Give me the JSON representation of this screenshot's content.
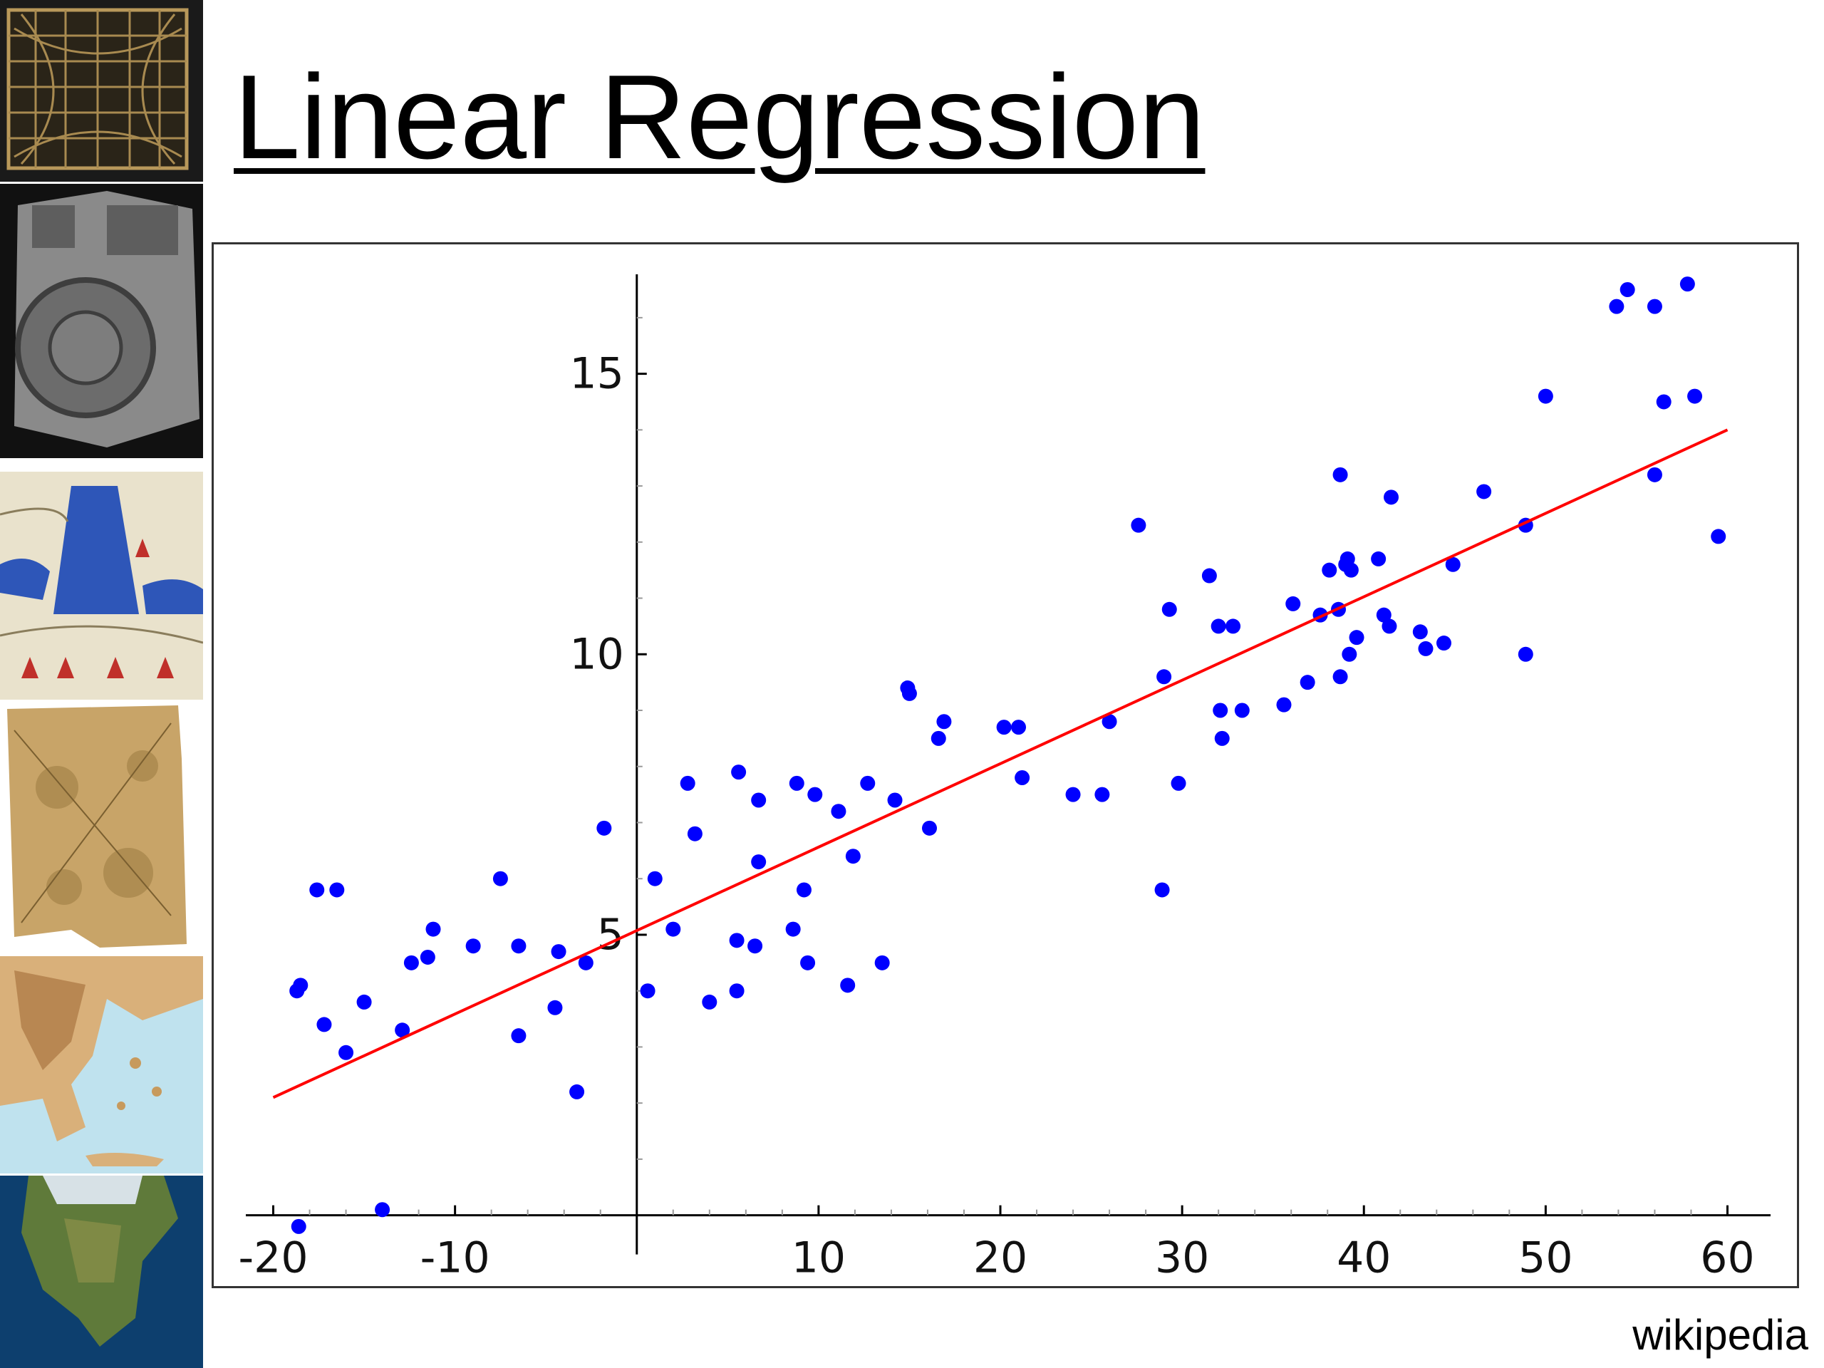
{
  "slide": {
    "title": "Linear Regression",
    "credit": "wikipedia"
  },
  "thumbnails": [
    {
      "name": "grid-map-image"
    },
    {
      "name": "clay-tablet-map-image"
    },
    {
      "name": "illustrated-map-image"
    },
    {
      "name": "parchment-map-image"
    },
    {
      "name": "greece-relief-map-image"
    },
    {
      "name": "north-america-globe-image"
    }
  ],
  "chart_data": {
    "type": "scatter",
    "title": "",
    "xlabel": "",
    "ylabel": "",
    "xlim": [
      -21,
      61
    ],
    "ylim": [
      -0.5,
      16.9
    ],
    "xticks": [
      -20,
      -10,
      10,
      20,
      30,
      40,
      50,
      60
    ],
    "yticks": [
      5,
      10,
      15
    ],
    "grid": false,
    "colors": {
      "points": "#0000ff",
      "line": "#ff0000",
      "axes": "#000000"
    },
    "regression_line": {
      "x": [
        -20,
        60
      ],
      "y": [
        2.1,
        14.0
      ]
    },
    "points": [
      [
        -18.6,
        -0.2
      ],
      [
        -18.7,
        4.0
      ],
      [
        -18.5,
        4.1
      ],
      [
        -17.6,
        5.8
      ],
      [
        -16.5,
        5.8
      ],
      [
        -17.2,
        3.4
      ],
      [
        -16.0,
        2.9
      ],
      [
        -15.0,
        3.8
      ],
      [
        -14.0,
        0.1
      ],
      [
        -12.9,
        3.3
      ],
      [
        -12.4,
        4.5
      ],
      [
        -11.5,
        4.6
      ],
      [
        -11.2,
        5.1
      ],
      [
        -9.0,
        4.8
      ],
      [
        -7.5,
        6.0
      ],
      [
        -6.5,
        4.8
      ],
      [
        -6.5,
        3.2
      ],
      [
        -4.5,
        3.7
      ],
      [
        -4.3,
        4.7
      ],
      [
        -3.3,
        2.2
      ],
      [
        -2.8,
        4.5
      ],
      [
        -1.8,
        6.9
      ],
      [
        0.6,
        4.0
      ],
      [
        1.0,
        6.0
      ],
      [
        2.0,
        5.1
      ],
      [
        2.8,
        7.7
      ],
      [
        3.2,
        6.8
      ],
      [
        4.0,
        3.8
      ],
      [
        5.5,
        4.9
      ],
      [
        5.5,
        4.0
      ],
      [
        5.6,
        7.9
      ],
      [
        6.5,
        4.8
      ],
      [
        6.7,
        6.3
      ],
      [
        6.7,
        7.4
      ],
      [
        8.6,
        5.1
      ],
      [
        8.8,
        7.7
      ],
      [
        9.2,
        5.8
      ],
      [
        9.4,
        4.5
      ],
      [
        9.8,
        7.5
      ],
      [
        11.1,
        7.2
      ],
      [
        11.6,
        4.1
      ],
      [
        11.9,
        6.4
      ],
      [
        12.7,
        7.7
      ],
      [
        13.5,
        4.5
      ],
      [
        14.2,
        7.4
      ],
      [
        14.9,
        9.4
      ],
      [
        15.0,
        9.3
      ],
      [
        16.1,
        6.9
      ],
      [
        16.6,
        8.5
      ],
      [
        16.9,
        8.8
      ],
      [
        20.2,
        8.7
      ],
      [
        21.0,
        8.7
      ],
      [
        21.2,
        7.8
      ],
      [
        24.0,
        7.5
      ],
      [
        25.6,
        7.5
      ],
      [
        26.0,
        8.8
      ],
      [
        27.6,
        12.3
      ],
      [
        28.9,
        5.8
      ],
      [
        29.0,
        9.6
      ],
      [
        29.3,
        10.8
      ],
      [
        29.8,
        7.7
      ],
      [
        31.5,
        11.4
      ],
      [
        32.0,
        10.5
      ],
      [
        32.1,
        9.0
      ],
      [
        32.2,
        8.5
      ],
      [
        32.8,
        10.5
      ],
      [
        33.3,
        9.0
      ],
      [
        35.6,
        9.1
      ],
      [
        36.1,
        10.9
      ],
      [
        36.9,
        9.5
      ],
      [
        37.6,
        10.7
      ],
      [
        38.1,
        11.5
      ],
      [
        38.6,
        10.8
      ],
      [
        38.7,
        13.2
      ],
      [
        38.7,
        9.6
      ],
      [
        39.0,
        11.6
      ],
      [
        39.1,
        11.7
      ],
      [
        39.3,
        11.5
      ],
      [
        39.2,
        10.0
      ],
      [
        39.6,
        10.3
      ],
      [
        40.8,
        11.7
      ],
      [
        41.1,
        10.7
      ],
      [
        41.4,
        10.5
      ],
      [
        41.5,
        12.8
      ],
      [
        43.1,
        10.4
      ],
      [
        43.4,
        10.1
      ],
      [
        44.4,
        10.2
      ],
      [
        44.9,
        11.6
      ],
      [
        46.6,
        12.9
      ],
      [
        48.9,
        12.3
      ],
      [
        48.9,
        10.0
      ],
      [
        50.0,
        14.6
      ],
      [
        53.9,
        16.2
      ],
      [
        54.5,
        16.5
      ],
      [
        56.0,
        16.2
      ],
      [
        56.0,
        13.2
      ],
      [
        56.5,
        14.5
      ],
      [
        57.8,
        16.6
      ],
      [
        58.2,
        14.6
      ],
      [
        59.5,
        12.1
      ]
    ]
  }
}
